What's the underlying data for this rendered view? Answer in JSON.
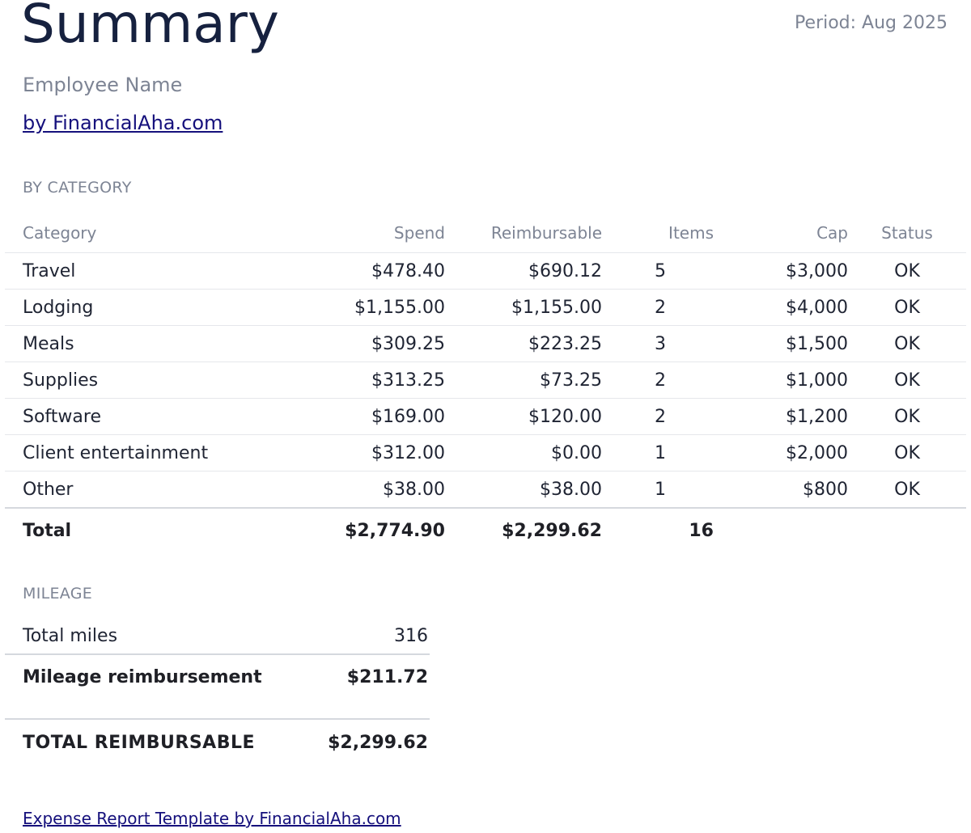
{
  "header": {
    "title": "Summary",
    "period": "Period: Aug 2025",
    "employee": "Employee Name",
    "byline": "by FinancialAha.com"
  },
  "by_category": {
    "label": "BY CATEGORY",
    "columns": {
      "category": "Category",
      "spend": "Spend",
      "reimbursable": "Reimbursable",
      "items": "Items",
      "cap": "Cap",
      "status": "Status"
    },
    "rows": [
      {
        "category": "Travel",
        "spend": "$478.40",
        "reimbursable": "$690.12",
        "items": "5",
        "cap": "$3,000",
        "status": "OK"
      },
      {
        "category": "Lodging",
        "spend": "$1,155.00",
        "reimbursable": "$1,155.00",
        "items": "2",
        "cap": "$4,000",
        "status": "OK"
      },
      {
        "category": "Meals",
        "spend": "$309.25",
        "reimbursable": "$223.25",
        "items": "3",
        "cap": "$1,500",
        "status": "OK"
      },
      {
        "category": "Supplies",
        "spend": "$313.25",
        "reimbursable": "$73.25",
        "items": "2",
        "cap": "$1,000",
        "status": "OK"
      },
      {
        "category": "Software",
        "spend": "$169.00",
        "reimbursable": "$120.00",
        "items": "2",
        "cap": "$1,200",
        "status": "OK"
      },
      {
        "category": "Client entertainment",
        "spend": "$312.00",
        "reimbursable": "$0.00",
        "items": "1",
        "cap": "$2,000",
        "status": "OK"
      },
      {
        "category": "Other",
        "spend": "$38.00",
        "reimbursable": "$38.00",
        "items": "1",
        "cap": "$800",
        "status": "OK"
      }
    ],
    "total": {
      "label": "Total",
      "spend": "$2,774.90",
      "reimbursable": "$2,299.62",
      "items": "16"
    }
  },
  "mileage": {
    "label": "MILEAGE",
    "total_miles_label": "Total miles",
    "total_miles": "316",
    "reimbursement_label": "Mileage reimbursement",
    "reimbursement": "$211.72"
  },
  "grand_total": {
    "label": "TOTAL REIMBURSABLE",
    "value": "$2,299.62"
  },
  "footer": {
    "link": "Expense Report Template by FinancialAha.com"
  }
}
